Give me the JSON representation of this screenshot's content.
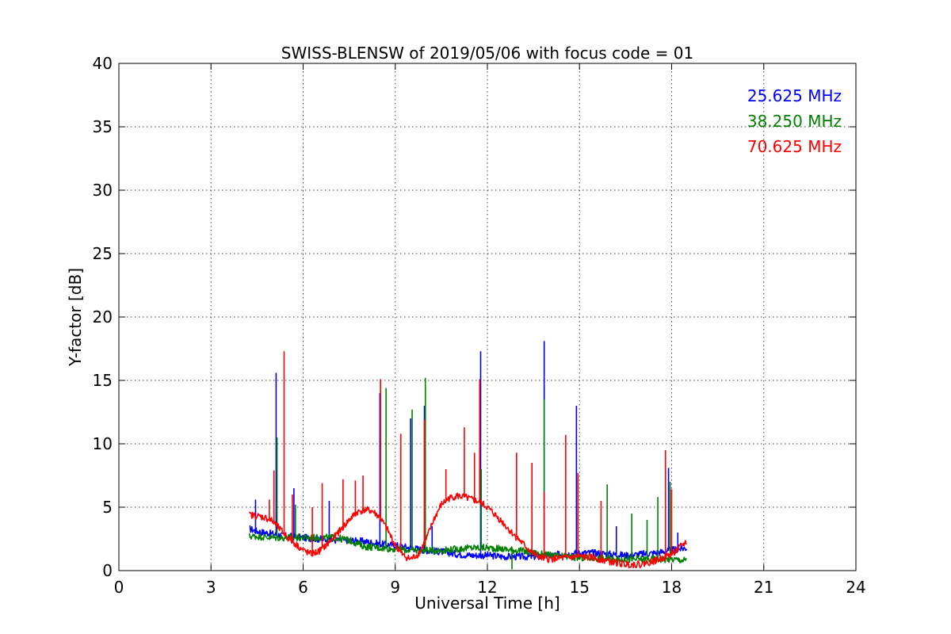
{
  "chart_data": {
    "type": "line",
    "title": "SWISS-BLENSW of 2019/05/06 with focus code = 01",
    "xlabel": "Universal Time [h]",
    "ylabel": "Y-factor [dB]",
    "xlim": [
      0,
      24
    ],
    "ylim": [
      0,
      40
    ],
    "xticks": [
      0,
      3,
      6,
      9,
      12,
      15,
      18,
      21,
      24
    ],
    "yticks": [
      0,
      5,
      10,
      15,
      20,
      25,
      30,
      35,
      40
    ],
    "grid": true,
    "legend_position": "top-right",
    "series": [
      {
        "name": "25.625 MHz",
        "color": "#0000ff",
        "x": [
          4.25,
          4.5,
          5.0,
          5.5,
          6.0,
          6.5,
          7.0,
          7.5,
          8.0,
          8.5,
          9.0,
          9.5,
          10.0,
          10.5,
          11.0,
          11.5,
          12.0,
          12.5,
          13.0,
          13.5,
          14.0,
          14.5,
          15.0,
          15.5,
          16.0,
          16.5,
          17.0,
          17.5,
          18.0,
          18.5
        ],
        "values": [
          3.3,
          3.1,
          2.9,
          2.7,
          2.6,
          2.5,
          2.4,
          2.4,
          2.3,
          2.1,
          2.0,
          1.8,
          1.6,
          1.5,
          1.3,
          1.2,
          1.2,
          1.1,
          1.1,
          1.1,
          1.2,
          1.3,
          1.4,
          1.4,
          1.3,
          1.2,
          1.3,
          1.4,
          1.6,
          1.8
        ],
        "spikes": [
          [
            4.45,
            5.6
          ],
          [
            5.12,
            15.6
          ],
          [
            5.7,
            6.5
          ],
          [
            6.85,
            5.5
          ],
          [
            8.5,
            14.0
          ],
          [
            9.5,
            12.0
          ],
          [
            9.95,
            13.0
          ],
          [
            10.2,
            3.5
          ],
          [
            11.78,
            17.3
          ],
          [
            13.85,
            18.1
          ],
          [
            14.9,
            13.0
          ],
          [
            16.2,
            3.5
          ],
          [
            17.9,
            8.1
          ],
          [
            18.2,
            3.0
          ]
        ]
      },
      {
        "name": "38.250 MHz",
        "color": "#008000",
        "x": [
          4.25,
          4.5,
          5.0,
          5.5,
          6.0,
          6.5,
          7.0,
          7.5,
          8.0,
          8.5,
          9.0,
          9.5,
          10.0,
          10.5,
          11.0,
          11.5,
          12.0,
          12.5,
          13.0,
          13.5,
          14.0,
          14.5,
          15.0,
          15.5,
          16.0,
          16.5,
          17.0,
          17.5,
          18.0,
          18.5
        ],
        "values": [
          2.7,
          2.7,
          2.6,
          2.6,
          2.6,
          2.6,
          2.6,
          2.4,
          1.9,
          1.8,
          1.7,
          1.6,
          1.6,
          1.6,
          1.7,
          1.8,
          1.8,
          1.7,
          1.6,
          1.4,
          1.2,
          1.1,
          1.0,
          1.0,
          0.9,
          0.9,
          0.9,
          0.9,
          0.9,
          0.8
        ],
        "spikes": [
          [
            5.15,
            10.5
          ],
          [
            5.75,
            5.2
          ],
          [
            8.7,
            14.4
          ],
          [
            9.55,
            12.7
          ],
          [
            9.98,
            15.2
          ],
          [
            11.8,
            8.0
          ],
          [
            12.8,
            0.1
          ],
          [
            13.85,
            13.5
          ],
          [
            15.9,
            6.8
          ],
          [
            16.7,
            4.5
          ],
          [
            17.2,
            4.0
          ],
          [
            17.55,
            5.8
          ],
          [
            17.95,
            7.0
          ]
        ]
      },
      {
        "name": "70.625 MHz",
        "color": "#ff0000",
        "x": [
          4.25,
          4.5,
          4.75,
          5.0,
          5.5,
          6.0,
          6.25,
          6.5,
          6.75,
          7.0,
          7.25,
          7.5,
          7.75,
          8.0,
          8.25,
          8.5,
          8.75,
          9.0,
          9.25,
          9.5,
          9.75,
          10.0,
          10.25,
          10.5,
          10.75,
          11.0,
          11.25,
          11.5,
          11.75,
          12.0,
          12.25,
          12.5,
          12.75,
          13.0,
          13.25,
          13.5,
          13.75,
          14.0,
          14.5,
          15.0,
          15.5,
          16.0,
          16.5,
          17.0,
          17.5,
          18.0,
          18.5
        ],
        "values": [
          4.4,
          4.3,
          4.2,
          3.9,
          2.6,
          1.6,
          1.3,
          1.5,
          2.0,
          2.6,
          3.3,
          4.0,
          4.6,
          4.8,
          4.7,
          4.2,
          3.2,
          2.0,
          1.2,
          0.9,
          1.3,
          2.4,
          4.0,
          5.2,
          5.7,
          5.9,
          5.8,
          5.6,
          5.4,
          5.0,
          4.4,
          3.8,
          3.1,
          2.5,
          1.9,
          1.3,
          1.0,
          0.9,
          1.0,
          1.1,
          1.0,
          0.7,
          0.5,
          0.5,
          0.8,
          1.3,
          2.3
        ],
        "spikes": [
          [
            4.9,
            5.6
          ],
          [
            5.05,
            7.9
          ],
          [
            5.38,
            17.3
          ],
          [
            5.65,
            6.0
          ],
          [
            6.3,
            5.0
          ],
          [
            6.62,
            6.9
          ],
          [
            7.3,
            7.2
          ],
          [
            7.7,
            7.1
          ],
          [
            7.95,
            7.5
          ],
          [
            8.52,
            15.1
          ],
          [
            9.18,
            10.8
          ],
          [
            9.95,
            11.9
          ],
          [
            10.65,
            8.0
          ],
          [
            11.25,
            11.3
          ],
          [
            11.58,
            9.3
          ],
          [
            11.75,
            15.1
          ],
          [
            12.95,
            9.3
          ],
          [
            13.45,
            8.5
          ],
          [
            13.85,
            6.2
          ],
          [
            14.55,
            10.7
          ],
          [
            14.95,
            7.7
          ],
          [
            15.7,
            5.5
          ],
          [
            17.8,
            9.5
          ],
          [
            18.0,
            6.4
          ]
        ]
      }
    ]
  }
}
